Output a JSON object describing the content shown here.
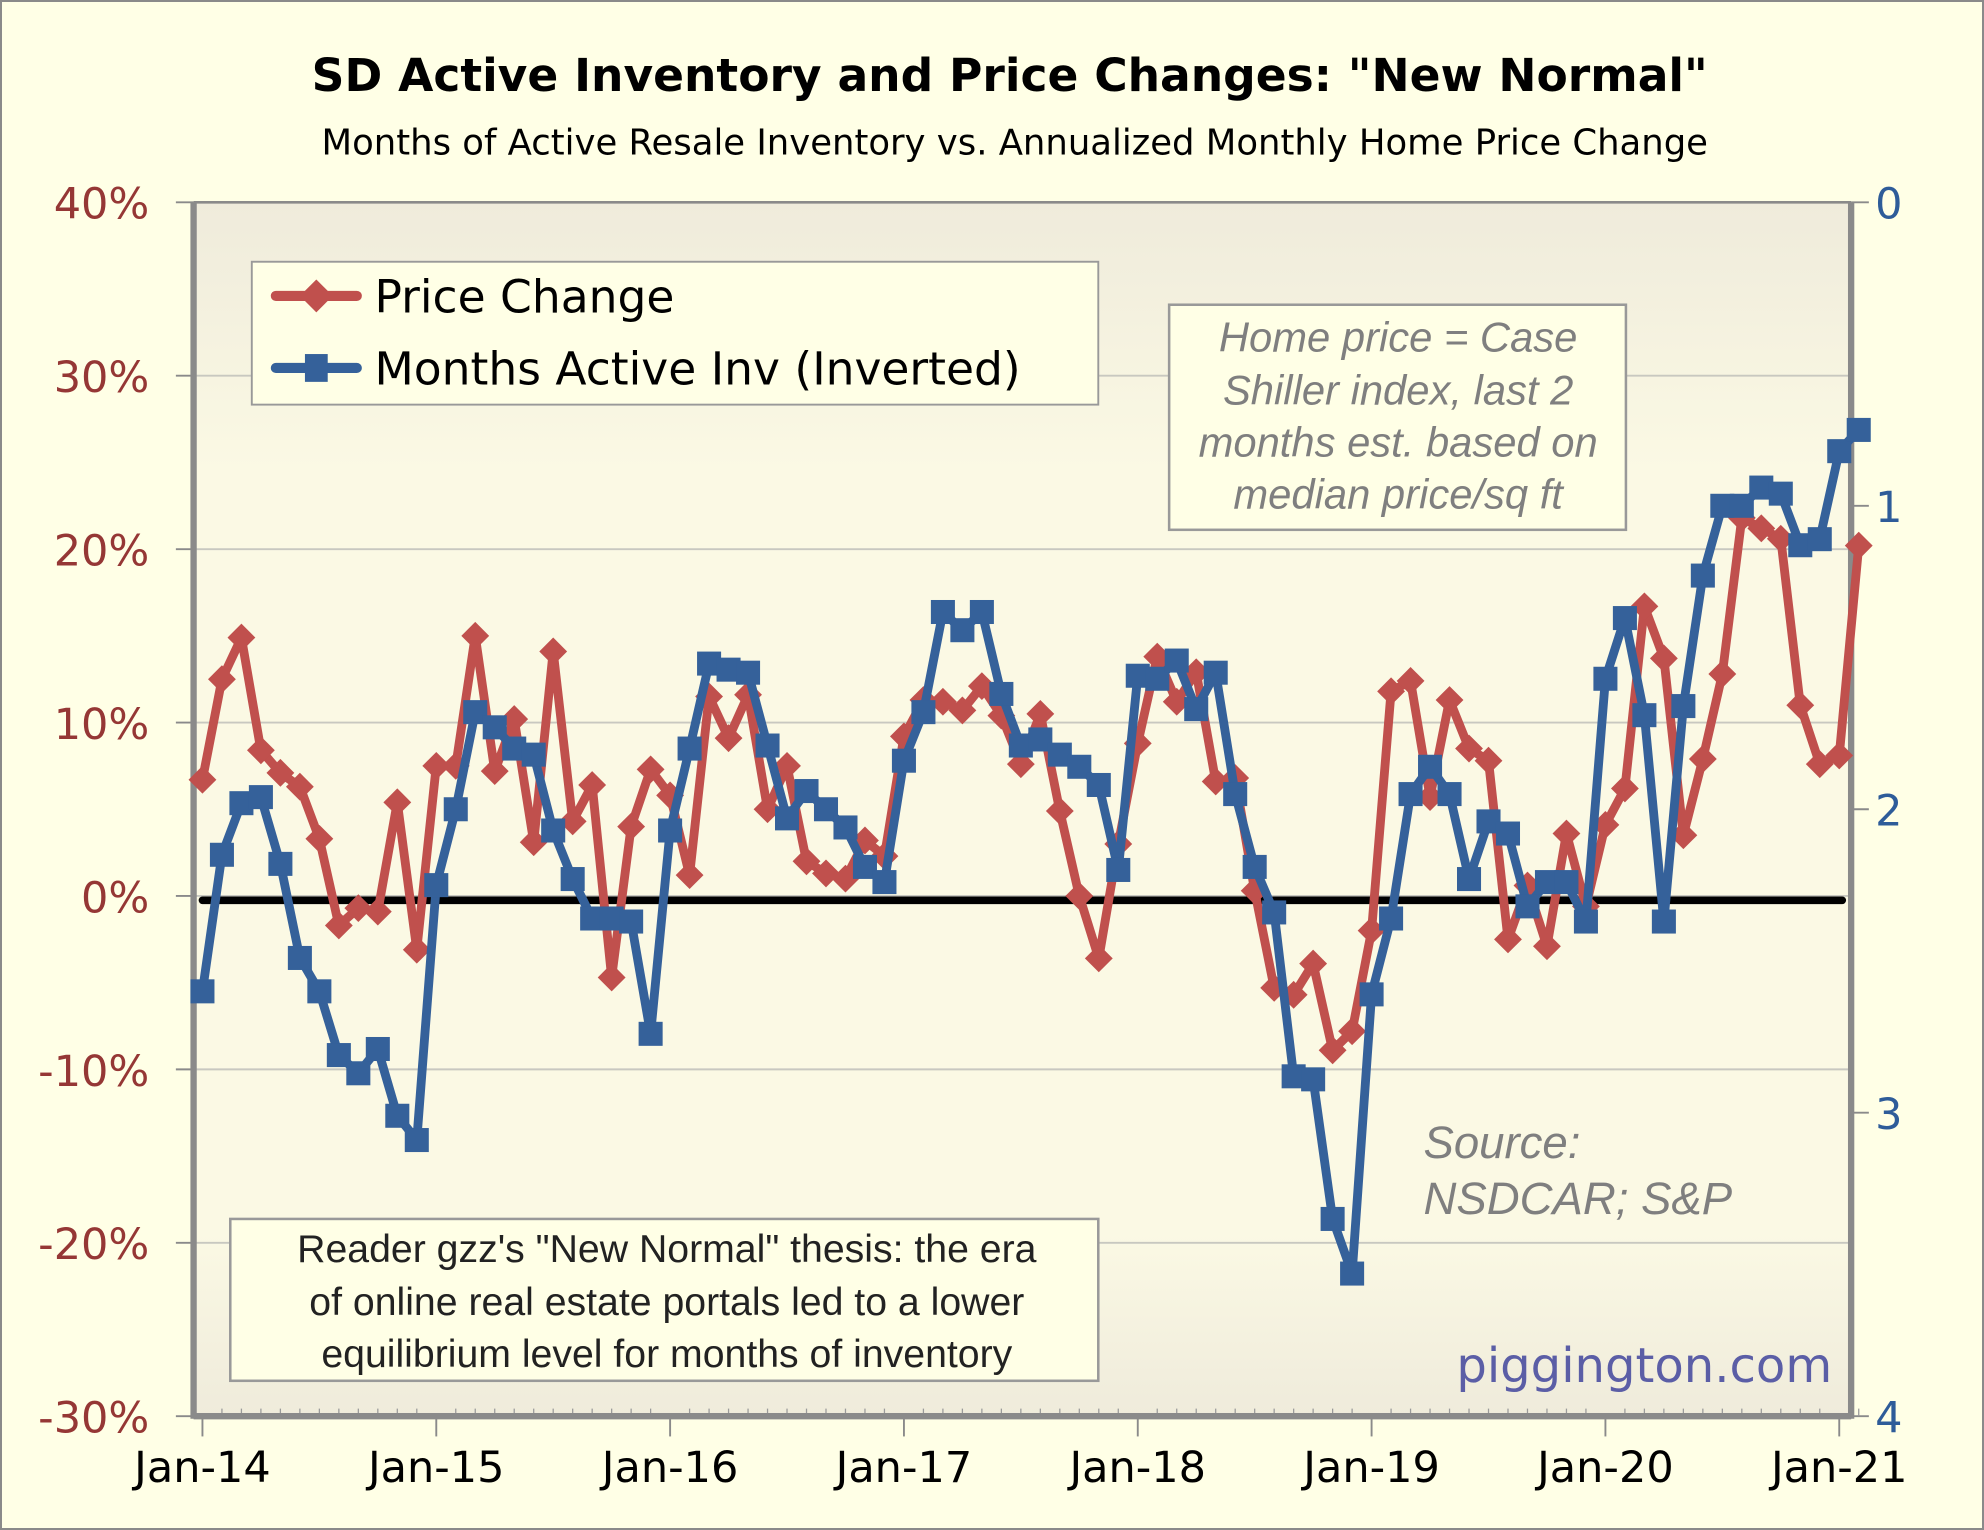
{
  "chart_data": {
    "type": "line",
    "title": "SD Active Inventory and Price Changes: \"New Normal\"",
    "subtitle": "Months of Active Resale Inventory vs. Annualized Monthly Home Price Change",
    "x_start": "Jan-14",
    "x_frequency": "monthly",
    "x_tick_labels": [
      "Jan-14",
      "Jan-15",
      "Jan-16",
      "Jan-17",
      "Jan-18",
      "Jan-19",
      "Jan-20",
      "Jan-21"
    ],
    "left_axis": {
      "label": "Price Change",
      "range": [
        -30,
        40
      ],
      "ticks": [
        40,
        30,
        20,
        10,
        0,
        -10,
        -20,
        -30
      ],
      "tick_labels": [
        "40%",
        "30%",
        "20%",
        "10%",
        "0%",
        "-10%",
        "-20%",
        "-30%"
      ],
      "color": "#953735"
    },
    "right_axis": {
      "label": "Months Active Inv (Inverted)",
      "range": [
        0,
        4
      ],
      "inverted": true,
      "ticks": [
        0,
        1,
        2,
        3,
        4
      ],
      "tick_labels": [
        "0",
        "1",
        "2",
        "3",
        "4"
      ],
      "color": "#2E5C99"
    },
    "grid": true,
    "zero_line": true,
    "legend": {
      "placement": "top-left",
      "entries": [
        "Price Change",
        "Months Active Inv (Inverted)"
      ]
    },
    "series": [
      {
        "name": "Price Change",
        "axis": "left",
        "color": "#C0504D",
        "marker": "diamond",
        "unit": "%",
        "values": [
          6.7,
          12.5,
          14.9,
          8.4,
          7.1,
          6.3,
          3.3,
          -1.7,
          -0.7,
          -0.9,
          5.4,
          -3.1,
          7.5,
          7.5,
          15.0,
          7.2,
          10.2,
          3.1,
          14.1,
          4.3,
          6.4,
          -4.7,
          4.0,
          7.3,
          5.8,
          1.2,
          11.5,
          9.1,
          11.6,
          5.0,
          7.5,
          2.0,
          1.3,
          1.0,
          3.2,
          2.3,
          9.2,
          11.3,
          11.2,
          10.7,
          12.1,
          10.4,
          7.6,
          10.5,
          4.9,
          0.0,
          -3.6,
          3.0,
          8.8,
          13.8,
          11.2,
          12.9,
          6.6,
          6.8,
          0.3,
          -5.3,
          -5.7,
          -3.9,
          -8.9,
          -7.8,
          -2.0,
          11.8,
          12.4,
          5.7,
          11.3,
          8.5,
          7.8,
          -2.5,
          0.6,
          -2.9,
          3.6,
          -0.6,
          4.1,
          6.2,
          16.7,
          13.7,
          3.5,
          7.9,
          12.8,
          21.8,
          21.2,
          20.6,
          11.0,
          7.6,
          8.1,
          20.2
        ]
      },
      {
        "name": "Months Active Inv (Inverted)",
        "axis": "right",
        "color": "#35619A",
        "marker": "square",
        "unit": "months",
        "values": [
          2.6,
          2.15,
          1.98,
          1.96,
          2.18,
          2.49,
          2.6,
          2.81,
          2.87,
          2.79,
          3.01,
          3.09,
          2.25,
          2.0,
          1.68,
          1.73,
          1.8,
          1.82,
          2.07,
          2.23,
          2.36,
          2.36,
          2.37,
          2.74,
          2.07,
          1.8,
          1.52,
          1.54,
          1.55,
          1.79,
          2.03,
          1.94,
          2.0,
          2.06,
          2.19,
          2.24,
          1.84,
          1.68,
          1.35,
          1.41,
          1.35,
          1.62,
          1.79,
          1.77,
          1.82,
          1.86,
          1.92,
          2.2,
          1.56,
          1.57,
          1.51,
          1.67,
          1.55,
          1.95,
          2.19,
          2.34,
          2.88,
          2.89,
          3.35,
          3.53,
          2.61,
          2.36,
          1.95,
          1.86,
          1.95,
          2.23,
          2.04,
          2.08,
          2.32,
          2.24,
          2.24,
          2.37,
          1.57,
          1.37,
          1.69,
          2.37,
          1.66,
          1.23,
          1.0,
          1.0,
          0.94,
          0.96,
          1.13,
          1.11,
          0.82,
          0.75
        ]
      }
    ],
    "annotations": [
      "Home price = Case Shiller index, last 2 months est. based on median price/sq ft",
      "Source: NSDCAR; S&P",
      "Reader gzz's \"New Normal\" thesis: the era of online real estate portals led to a lower equilibrium level for months of inventory",
      "piggington.com"
    ]
  },
  "note_box": {
    "lines": [
      "Home price = Case",
      "Shiller index, last 2",
      "months est. based on",
      "median price/sq ft"
    ]
  },
  "source": {
    "lines": [
      "Source:",
      "NSDCAR; S&P"
    ]
  },
  "thesis_box": {
    "lines": [
      "Reader gzz's \"New Normal\" thesis: the era",
      "of online real estate portals led to a lower",
      "equilibrium level for months of inventory"
    ]
  },
  "brand": "piggington.com"
}
